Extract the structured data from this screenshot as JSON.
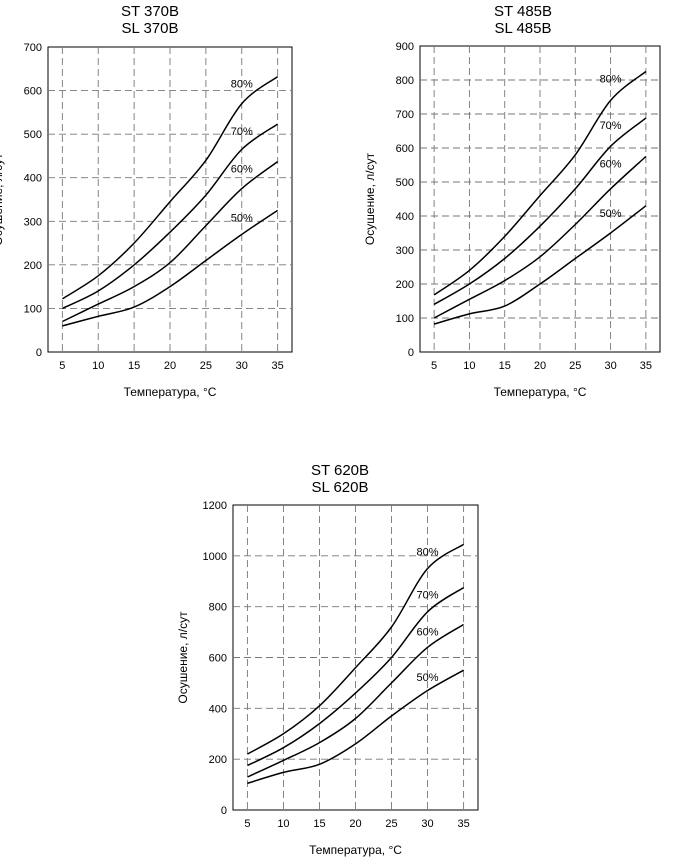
{
  "chart_data": [
    {
      "type": "line",
      "title": [
        "ST 370B",
        "SL 370B"
      ],
      "xlabel": "Температура, °C",
      "ylabel": "Осушение, л/сут",
      "xlim": [
        3,
        37
      ],
      "ylim": [
        0,
        700
      ],
      "xticks": [
        5,
        10,
        15,
        20,
        25,
        30,
        35
      ],
      "yticks": [
        0,
        100,
        200,
        300,
        400,
        500,
        600,
        700
      ],
      "grid": true,
      "x": [
        5,
        10,
        15,
        20,
        25,
        30,
        35
      ],
      "series": [
        {
          "name": "80%",
          "values": [
            122,
            175,
            250,
            345,
            440,
            570,
            632
          ]
        },
        {
          "name": "70%",
          "values": [
            100,
            140,
            200,
            275,
            360,
            465,
            523
          ]
        },
        {
          "name": "60%",
          "values": [
            70,
            110,
            150,
            205,
            290,
            375,
            437
          ]
        },
        {
          "name": "50%",
          "values": [
            60,
            82,
            103,
            150,
            210,
            270,
            325
          ]
        }
      ]
    },
    {
      "type": "line",
      "title": [
        "ST 485B",
        "SL 485B"
      ],
      "xlabel": "Температура, °C",
      "ylabel": "Осушение, л/сут",
      "xlim": [
        3,
        37
      ],
      "ylim": [
        0,
        900
      ],
      "xticks": [
        5,
        10,
        15,
        20,
        25,
        30,
        35
      ],
      "yticks": [
        0,
        100,
        200,
        300,
        400,
        500,
        600,
        700,
        800,
        900
      ],
      "grid": true,
      "x": [
        5,
        10,
        15,
        20,
        25,
        30,
        35
      ],
      "series": [
        {
          "name": "80%",
          "values": [
            168,
            240,
            340,
            460,
            580,
            740,
            825
          ]
        },
        {
          "name": "70%",
          "values": [
            140,
            200,
            275,
            370,
            480,
            605,
            688
          ]
        },
        {
          "name": "60%",
          "values": [
            100,
            155,
            210,
            280,
            375,
            480,
            575
          ]
        },
        {
          "name": "50%",
          "values": [
            82,
            112,
            135,
            200,
            275,
            350,
            430
          ]
        }
      ]
    },
    {
      "type": "line",
      "title": [
        "ST 620B",
        "SL 620B"
      ],
      "xlabel": "Температура, °C",
      "ylabel": "Осушение, л/сут",
      "xlim": [
        3,
        37
      ],
      "ylim": [
        0,
        1200
      ],
      "xticks": [
        5,
        10,
        15,
        20,
        25,
        30,
        35
      ],
      "yticks": [
        0,
        200,
        400,
        600,
        800,
        1000,
        1200
      ],
      "grid": true,
      "x": [
        5,
        10,
        15,
        20,
        25,
        30,
        35
      ],
      "series": [
        {
          "name": "80%",
          "values": [
            220,
            300,
            410,
            560,
            720,
            950,
            1045
          ]
        },
        {
          "name": "70%",
          "values": [
            175,
            245,
            340,
            460,
            600,
            780,
            875
          ]
        },
        {
          "name": "60%",
          "values": [
            130,
            195,
            265,
            360,
            500,
            640,
            730
          ]
        },
        {
          "name": "50%",
          "values": [
            105,
            148,
            180,
            260,
            370,
            470,
            550
          ]
        }
      ]
    }
  ]
}
